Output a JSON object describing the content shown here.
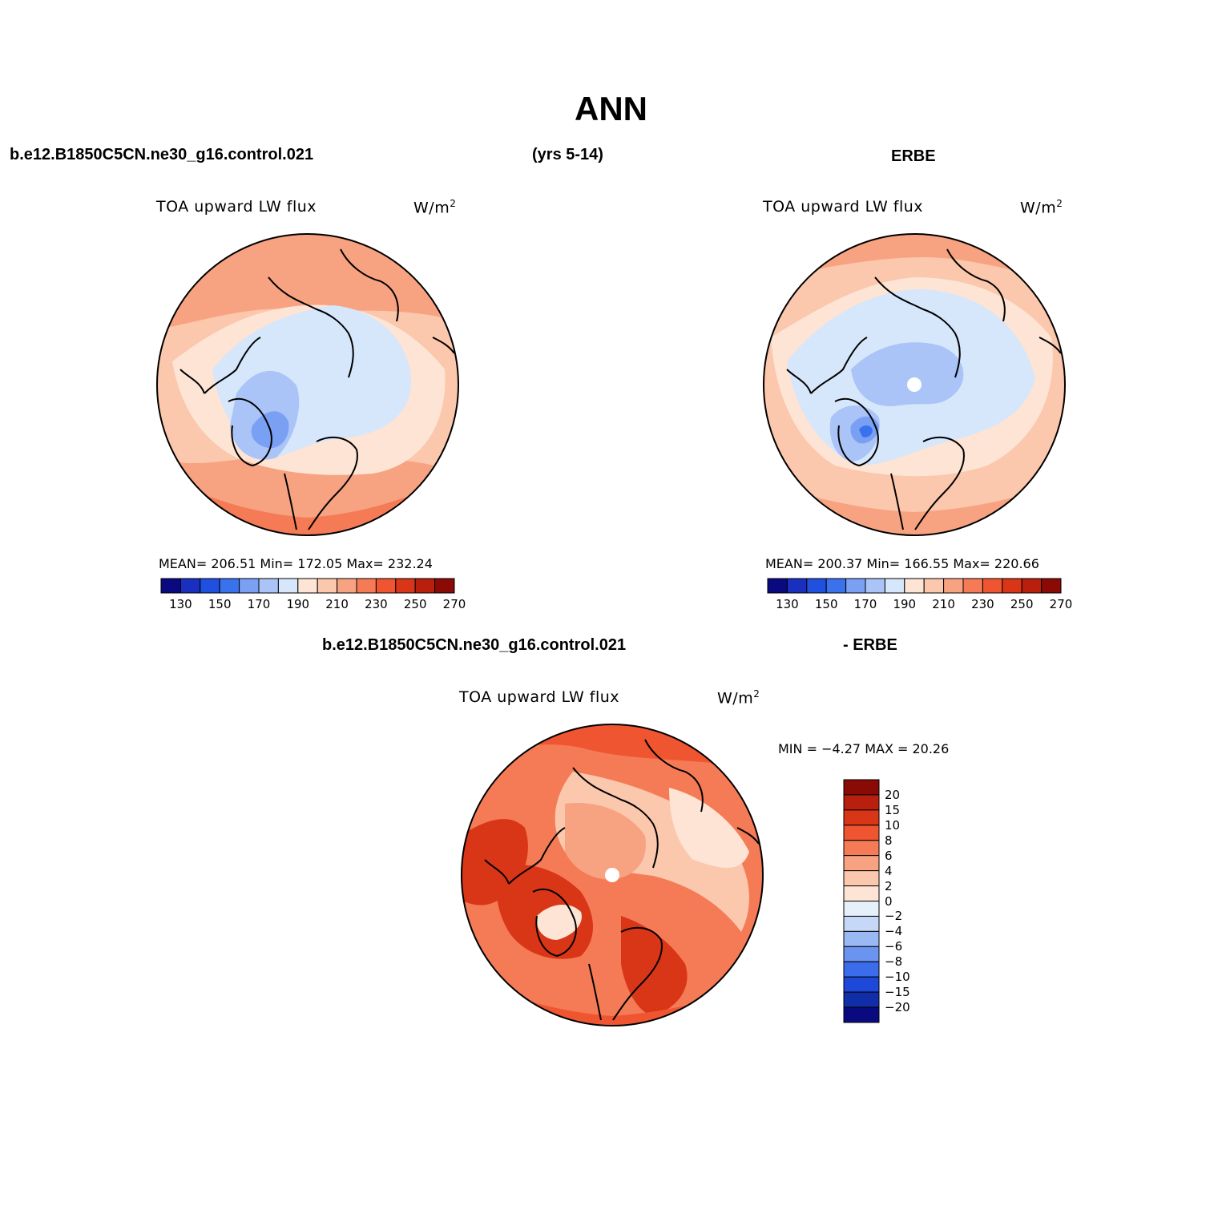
{
  "title": "ANN",
  "header": {
    "case_name": "b.e12.B1850C5CN.ne30_g16.control.021",
    "years": "(yrs 5-14)",
    "obs_name": "ERBE",
    "diff_case": "b.e12.B1850C5CN.ne30_g16.control.021",
    "diff_obs": "- ERBE"
  },
  "panels": [
    {
      "name": "model",
      "variable": "TOA upward LW flux",
      "units_base": "W/m",
      "units_exp": "2",
      "stats": "MEAN= 206.51   Min= 172.05   Max= 232.24"
    },
    {
      "name": "obs",
      "variable": "TOA upward LW flux",
      "units_base": "W/m",
      "units_exp": "2",
      "stats": "MEAN= 200.37   Min= 166.55   Max= 220.66"
    },
    {
      "name": "difference",
      "variable": "TOA upward LW flux",
      "units_base": "W/m",
      "units_exp": "2",
      "stats": "MIN =   −4.27 MAX =   20.26"
    }
  ],
  "colorbar_abs": {
    "labels": [
      "130",
      "150",
      "170",
      "190",
      "210",
      "230",
      "250",
      "270"
    ],
    "colors": [
      "#0a0a80",
      "#1a2fc0",
      "#2050e0",
      "#3a72ee",
      "#7aa0f4",
      "#aac4f8",
      "#d6e6fb",
      "#fde4d4",
      "#fbc7ad",
      "#f7a382",
      "#f47b56",
      "#ef5530",
      "#d93618",
      "#b81f0c",
      "#8a0a05"
    ]
  },
  "colorbar_diff": {
    "labels": [
      "20",
      "15",
      "10",
      "8",
      "6",
      "4",
      "2",
      "0",
      "−2",
      "−4",
      "−6",
      "−8",
      "−10",
      "−15",
      "−20"
    ],
    "colors": [
      "#8a0a05",
      "#b81f0c",
      "#d93618",
      "#ef5530",
      "#f47b56",
      "#f7a382",
      "#fbc7ad",
      "#fde4d4",
      "#e6f0fb",
      "#c6d8f8",
      "#9ab8f4",
      "#6a94f0",
      "#3a6cec",
      "#1d48d8",
      "#0f2ea8",
      "#0a0a80"
    ]
  }
}
